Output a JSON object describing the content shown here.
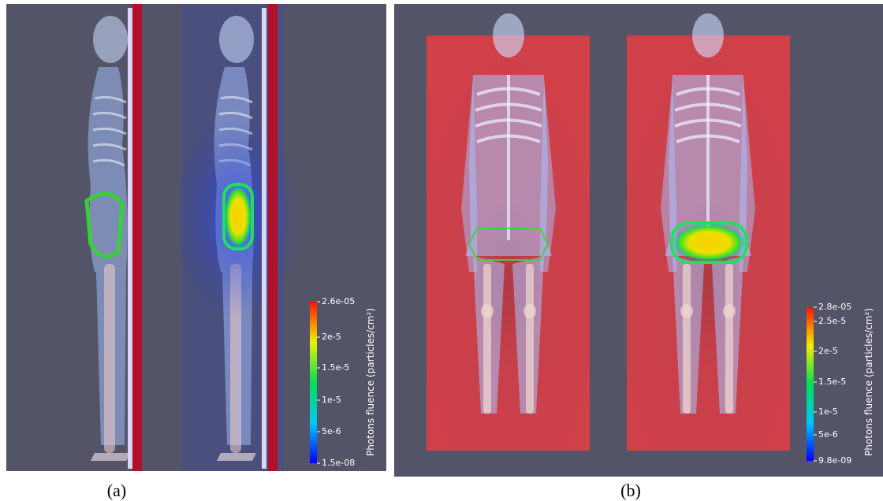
{
  "panels": [
    {
      "caption": "(a)",
      "colorbar": {
        "title": "Photons fluence (particles/cm²)",
        "ticks": [
          "2.6e-05",
          "2e-5",
          "1.5e-5",
          "1e-5",
          "5e-6",
          "1.5e-08"
        ]
      }
    },
    {
      "caption": "(b)",
      "colorbar": {
        "title": "Photons fluence (particles/cm²)",
        "ticks": [
          "2.8e-05",
          "2.5e-5",
          "2e-5",
          "1.5e-5",
          "1e-5",
          "5e-6",
          "9.8e-09"
        ]
      }
    }
  ]
}
